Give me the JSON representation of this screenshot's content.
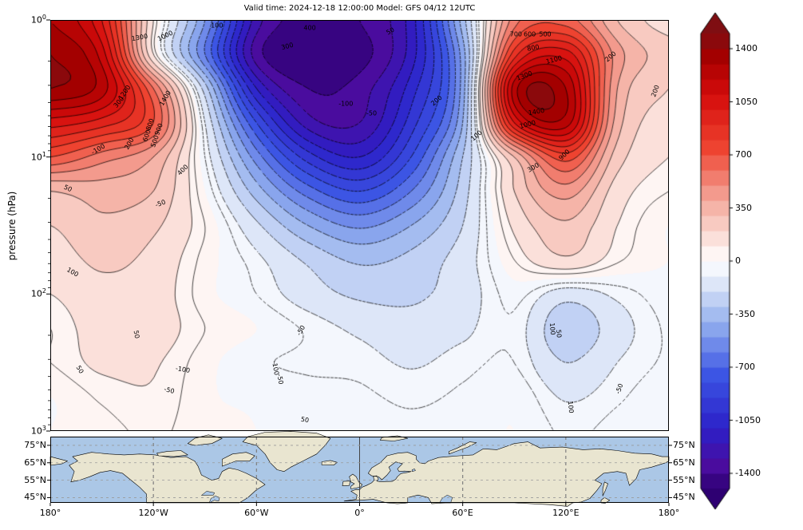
{
  "title": "Valid time: 2024-12-18 12:00:00 Model: GFS 04/12 12UTC",
  "chart_data": {
    "type": "heatmap",
    "title": "Valid time: 2024-12-18 12:00:00 Model: GFS 04/12 12UTC",
    "ylabel": "pressure (hPa)",
    "yscale": "log",
    "ylim": [
      1,
      1000
    ],
    "xlim": [
      -180,
      180
    ],
    "x_tick_lons": [
      -180,
      -120,
      -60,
      0,
      60,
      120,
      180
    ],
    "x_tick_labels": [
      "180°",
      "120°W",
      "60°W",
      "0°",
      "60°E",
      "120°E",
      "180°"
    ],
    "y_ticks": [
      {
        "p": 1,
        "label": "10^0"
      },
      {
        "p": 10,
        "label": "10^1"
      },
      {
        "p": 100,
        "label": "10^2"
      },
      {
        "p": 1000,
        "label": "10^3"
      }
    ],
    "field": {
      "lons": [
        -180,
        -150,
        -120,
        -90,
        -60,
        -30,
        0,
        30,
        60,
        90,
        120,
        150,
        180
      ],
      "pressures": [
        1,
        1.78,
        3.16,
        5.62,
        10,
        17.8,
        31.6,
        56.2,
        100,
        178,
        316,
        562,
        1000
      ],
      "values": [
        [
          1300,
          1000,
          100,
          -500,
          -1250,
          -1450,
          -1400,
          -1150,
          -350,
          550,
          650,
          300,
          150
        ],
        [
          1400,
          1150,
          100,
          -600,
          -1350,
          -1520,
          -1450,
          -1150,
          -450,
          850,
          1050,
          450,
          250
        ],
        [
          1400,
          1250,
          600,
          -250,
          -1100,
          -1400,
          -1350,
          -1050,
          -450,
          1250,
          1300,
          400,
          200
        ],
        [
          1050,
          950,
          700,
          -100,
          -800,
          -1250,
          -1300,
          -950,
          -400,
          1000,
          1250,
          350,
          150
        ],
        [
          700,
          550,
          400,
          -50,
          -550,
          -950,
          -1100,
          -800,
          -300,
          300,
          750,
          250,
          100
        ],
        [
          300,
          350,
          300,
          0,
          -350,
          -650,
          -800,
          -600,
          -250,
          200,
          450,
          150,
          50
        ],
        [
          200,
          280,
          220,
          50,
          -180,
          -400,
          -520,
          -400,
          -200,
          120,
          280,
          100,
          0
        ],
        [
          150,
          220,
          170,
          30,
          -80,
          -220,
          -320,
          -270,
          -150,
          50,
          180,
          60,
          0
        ],
        [
          100,
          170,
          150,
          20,
          -50,
          -150,
          -220,
          -220,
          -150,
          -30,
          -150,
          -80,
          -20
        ],
        [
          50,
          150,
          150,
          50,
          0,
          -60,
          -120,
          -160,
          -120,
          -60,
          -280,
          -140,
          -40
        ],
        [
          50,
          120,
          110,
          20,
          -40,
          -60,
          -70,
          -110,
          -70,
          -50,
          -200,
          -100,
          -40
        ],
        [
          0,
          60,
          90,
          10,
          -10,
          -30,
          -40,
          -60,
          -40,
          -10,
          -110,
          -60,
          -10
        ],
        [
          0,
          30,
          60,
          20,
          0,
          -20,
          -30,
          -40,
          -30,
          0,
          -60,
          -30,
          0
        ]
      ]
    },
    "contours": {
      "interval": 100,
      "extra_levels": [
        -50,
        50
      ],
      "negative_dashed": true,
      "labels": [
        {
          "t": "1300",
          "lon": -128,
          "p": 1.35,
          "rot": -10
        },
        {
          "t": "1000",
          "lon": -113,
          "p": 1.3,
          "rot": -25
        },
        {
          "t": "1200",
          "lon": -137,
          "p": 3.4,
          "rot": -55
        },
        {
          "t": "1400",
          "lon": -113,
          "p": 3.7,
          "rot": -60
        },
        {
          "t": "300",
          "lon": -140,
          "p": 4.0,
          "rot": -50
        },
        {
          "t": "800",
          "lon": -122,
          "p": 5.8,
          "rot": -70
        },
        {
          "t": "900",
          "lon": -117,
          "p": 6.3,
          "rot": -70
        },
        {
          "t": "600",
          "lon": -124,
          "p": 7.0,
          "rot": -70
        },
        {
          "t": "500",
          "lon": -119,
          "p": 7.7,
          "rot": -70
        },
        {
          "t": "200",
          "lon": -134,
          "p": 8.0,
          "rot": -60
        },
        {
          "t": "-100",
          "lon": -152,
          "p": 8.8,
          "rot": -30
        },
        {
          "t": "400",
          "lon": -103,
          "p": 12.5,
          "rot": -45
        },
        {
          "t": "50",
          "lon": -170,
          "p": 17,
          "rot": 25
        },
        {
          "t": "-50",
          "lon": -116,
          "p": 22,
          "rot": -20
        },
        {
          "t": "100",
          "lon": -167,
          "p": 69,
          "rot": 30
        },
        {
          "t": "100",
          "lon": -83,
          "p": 1.1,
          "rot": 0
        },
        {
          "t": "400",
          "lon": -29,
          "p": 1.15,
          "rot": 0
        },
        {
          "t": "300",
          "lon": -42,
          "p": 1.55,
          "rot": -15
        },
        {
          "t": "50",
          "lon": 18,
          "p": 1.2,
          "rot": -30
        },
        {
          "t": "-100",
          "lon": -8,
          "p": 4.1,
          "rot": 0
        },
        {
          "t": "-50",
          "lon": 7,
          "p": 4.8,
          "rot": 0
        },
        {
          "t": "200",
          "lon": 45,
          "p": 3.9,
          "rot": -40
        },
        {
          "t": "100",
          "lon": 68,
          "p": 7.0,
          "rot": -40
        },
        {
          "t": "700",
          "lon": 91,
          "p": 1.27,
          "rot": 0
        },
        {
          "t": "600",
          "lon": 99,
          "p": 1.27,
          "rot": 0
        },
        {
          "t": "500",
          "lon": 108,
          "p": 1.27,
          "rot": 0
        },
        {
          "t": "800",
          "lon": 101,
          "p": 1.6,
          "rot": -10
        },
        {
          "t": "1100",
          "lon": 113,
          "p": 1.95,
          "rot": -15
        },
        {
          "t": "1300",
          "lon": 96,
          "p": 2.55,
          "rot": -20
        },
        {
          "t": "200",
          "lon": 146,
          "p": 1.85,
          "rot": -40
        },
        {
          "t": "1400",
          "lon": 103,
          "p": 4.7,
          "rot": -10
        },
        {
          "t": "1000",
          "lon": 98,
          "p": 5.8,
          "rot": -15
        },
        {
          "t": "900",
          "lon": 119,
          "p": 9.6,
          "rot": -45
        },
        {
          "t": "300",
          "lon": 101,
          "p": 11.9,
          "rot": -30
        },
        {
          "t": "200",
          "lon": 172,
          "p": 3.3,
          "rot": -70
        },
        {
          "t": "-50",
          "lon": -34,
          "p": 185,
          "rot": -60
        },
        {
          "t": "50",
          "lon": -130,
          "p": 196,
          "rot": 80
        },
        {
          "t": "-100",
          "lon": -103,
          "p": 355,
          "rot": 10
        },
        {
          "t": "-50",
          "lon": -111,
          "p": 505,
          "rot": 15
        },
        {
          "t": "50",
          "lon": -163,
          "p": 355,
          "rot": 60
        },
        {
          "t": "-100",
          "lon": -49,
          "p": 345,
          "rot": 80
        },
        {
          "t": "-50",
          "lon": -46,
          "p": 420,
          "rot": 80
        },
        {
          "t": "50",
          "lon": -32,
          "p": 830,
          "rot": 10
        },
        {
          "t": "100",
          "lon": 112,
          "p": 179,
          "rot": 85
        },
        {
          "t": "50",
          "lon": 116,
          "p": 195,
          "rot": 85
        },
        {
          "t": "-50",
          "lon": 151,
          "p": 490,
          "rot": -70
        },
        {
          "t": "100",
          "lon": 123,
          "p": 670,
          "rot": 85
        }
      ]
    },
    "colorbar": {
      "ticks": [
        1400,
        1050,
        700,
        350,
        0,
        -350,
        -700,
        -1050,
        -1400
      ],
      "extend": "both",
      "range": [
        -1500,
        1500
      ],
      "stops": [
        {
          "v": -1500,
          "c": "#2e0072"
        },
        {
          "v": -1350,
          "c": "#4a0c9e"
        },
        {
          "v": -1100,
          "c": "#2c20c8"
        },
        {
          "v": -750,
          "c": "#3c55e4"
        },
        {
          "v": -400,
          "c": "#96b2ee"
        },
        {
          "v": -150,
          "c": "#dde6f8"
        },
        {
          "v": 0,
          "c": "#ffffff"
        },
        {
          "v": 150,
          "c": "#fbe0da"
        },
        {
          "v": 400,
          "c": "#f4a99c"
        },
        {
          "v": 750,
          "c": "#ee4330"
        },
        {
          "v": 1100,
          "c": "#d40b0b"
        },
        {
          "v": 1350,
          "c": "#a30000"
        },
        {
          "v": 1500,
          "c": "#7f0e12"
        }
      ]
    }
  },
  "map": {
    "lat_tick_values": [
      75,
      65,
      55,
      45
    ],
    "lat_tick_labels": [
      "75°N",
      "65°N",
      "55°N",
      "45°N"
    ],
    "lon_gridlines_dashed": [
      -120,
      -60,
      60,
      120
    ],
    "lon_gridline_solid": 0,
    "lat_range": [
      42,
      80
    ],
    "land_color": "#e9e5d0",
    "ocean_color": "#abc7e6",
    "coast_color": "#000000"
  }
}
